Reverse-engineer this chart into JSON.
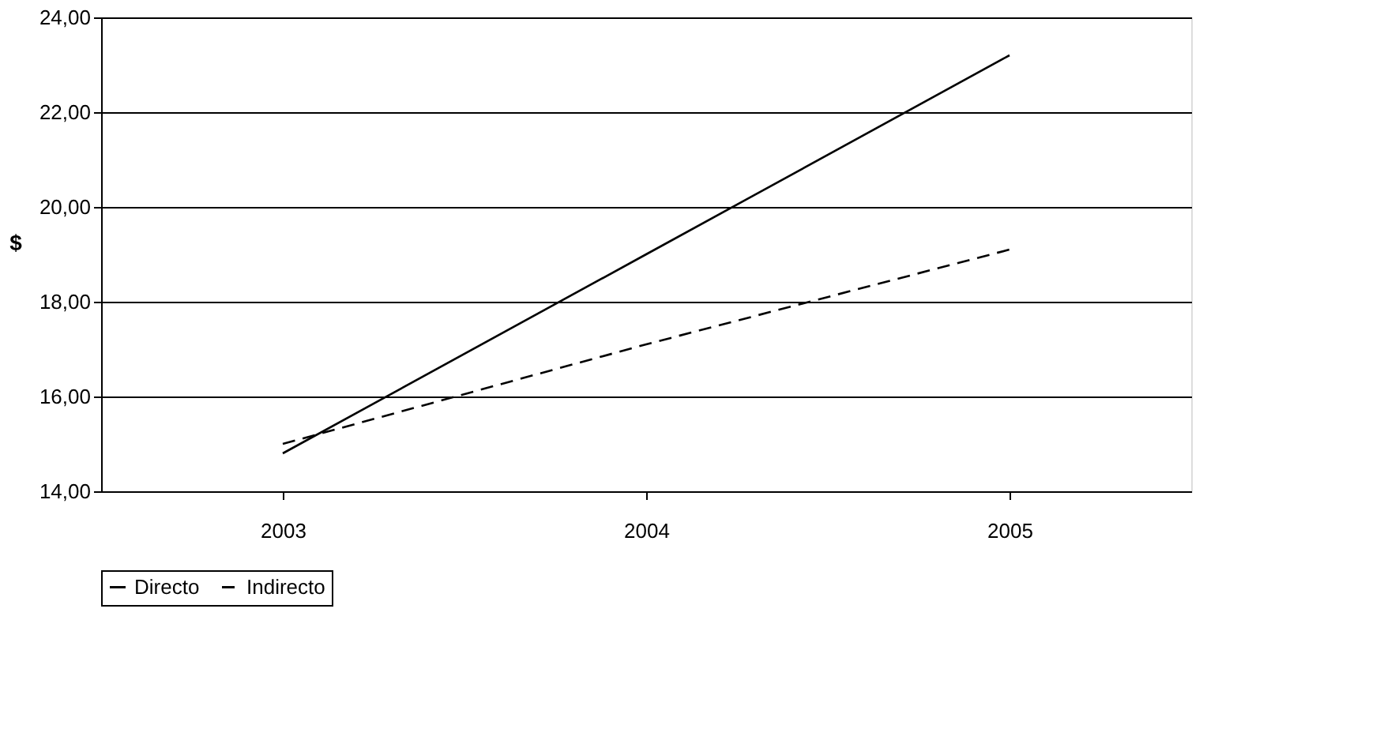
{
  "chart_data": {
    "type": "line",
    "ylabel": "$",
    "categories": [
      "2003",
      "2004",
      "2005"
    ],
    "series": [
      {
        "name": "Directo",
        "color": "#000000",
        "values": [
          14.8,
          19.0,
          23.2
        ],
        "line_style": "solid"
      },
      {
        "name": "Indirecto",
        "color": "#000000",
        "values": [
          15.0,
          17.1,
          19.1
        ],
        "line_style": "dashed"
      }
    ],
    "ylim": [
      14,
      24
    ],
    "yticks": [
      {
        "value": 14,
        "label": "14,00"
      },
      {
        "value": 16,
        "label": "16,00"
      },
      {
        "value": 18,
        "label": "18,00"
      },
      {
        "value": 20,
        "label": "20,00"
      },
      {
        "value": 22,
        "label": "22,00"
      },
      {
        "value": 24,
        "label": "24,00"
      }
    ],
    "grid": "y",
    "legend": "bottom",
    "marker": "none"
  }
}
